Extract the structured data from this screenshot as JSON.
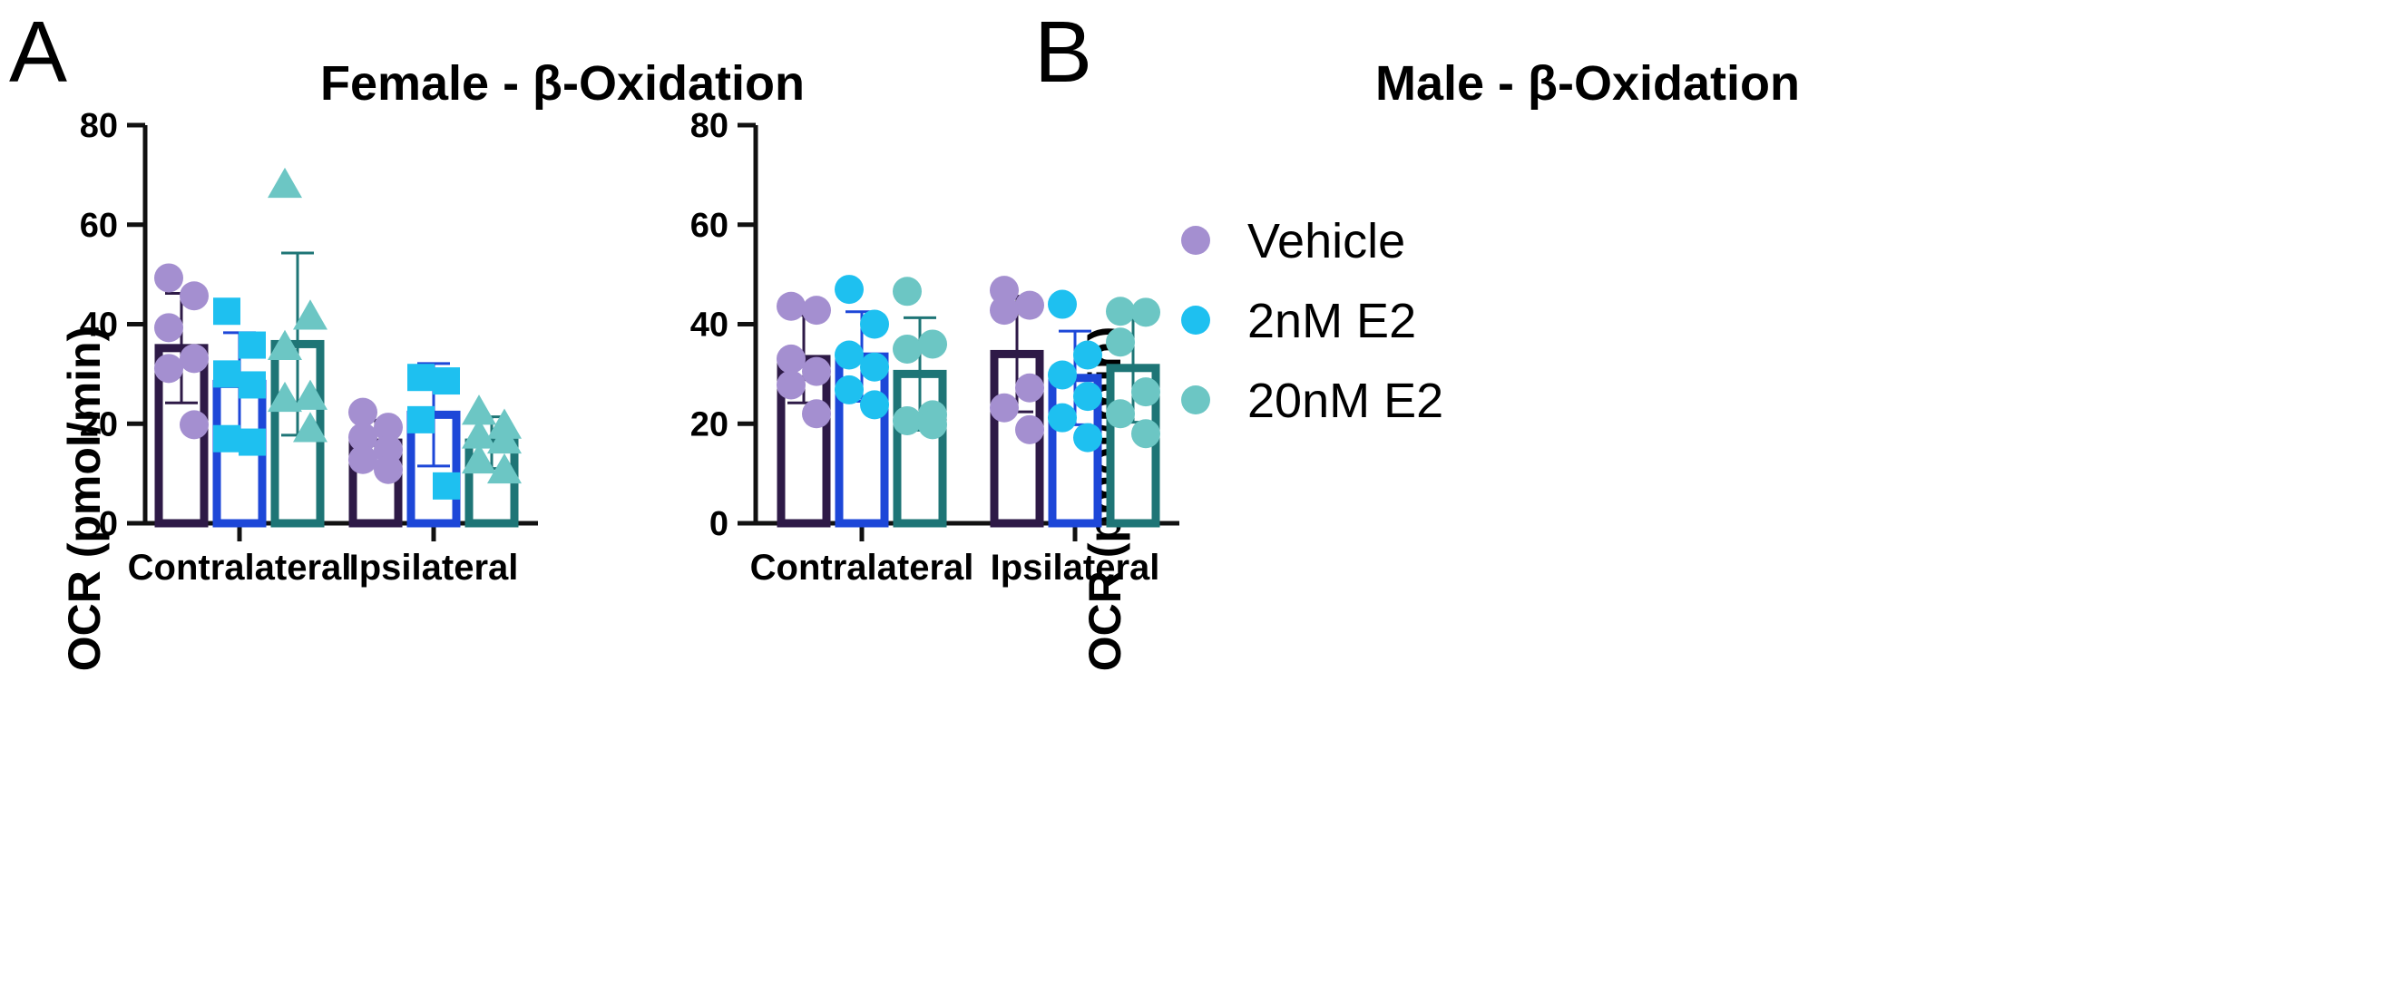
{
  "figure": {
    "panels": [
      "A",
      "B"
    ],
    "legend": [
      {
        "label": "Vehicle",
        "color": "#a48fd0"
      },
      {
        "label": "2nM E2",
        "color": "#1ec0f0"
      },
      {
        "label": "20nM E2",
        "color": "#6cc6c4"
      }
    ]
  },
  "chart_data": [
    {
      "type": "bar",
      "title": "Female - β-Oxidation",
      "ylabel": "OCR (pmol/min)",
      "xlabel": "",
      "ylim": [
        0,
        80
      ],
      "yticks": [
        0,
        20,
        40,
        60,
        80
      ],
      "categories": [
        "Contralateral",
        "Ipsilateral"
      ],
      "grid": false,
      "series": [
        {
          "name": "Vehicle",
          "bar_color": "#2e1a47",
          "point_color": "#a48fd0",
          "marker": "circle",
          "values": [
            35.2,
            16.2
          ],
          "errors": [
            11.0,
            4.5
          ],
          "points": [
            [
              49.3,
              45.7,
              39.3,
              33.1,
              31.1,
              19.8
            ],
            [
              22.3,
              19.3,
              17.3,
              14.8,
              12.8,
              10.8
            ]
          ]
        },
        {
          "name": "2nM E2",
          "bar_color": "#1d47d8",
          "point_color": "#1ec0f0",
          "marker": "square",
          "values": [
            28.0,
            21.8
          ],
          "errors": [
            10.3,
            10.3
          ],
          "points": [
            [
              42.6,
              35.8,
              30.0,
              27.8,
              17.0,
              16.3
            ],
            [
              29.3,
              28.6,
              20.8,
              7.5
            ]
          ]
        },
        {
          "name": "20nM E2",
          "bar_color": "#1e7576",
          "point_color": "#6cc6c4",
          "marker": "triangle",
          "values": [
            36.0,
            16.2
          ],
          "errors": [
            18.3,
            5.2
          ],
          "points": [
            [
              68.0,
              41.5,
              35.4,
              25.4,
              25.0,
              18.9
            ],
            [
              22.4,
              19.6,
              17.6,
              16.6,
              12.6,
              10.6
            ]
          ]
        }
      ]
    },
    {
      "type": "bar",
      "title": "Male - β-Oxidation",
      "ylabel": "OCR (pmol/min)",
      "xlabel": "",
      "ylim": [
        0,
        80
      ],
      "yticks": [
        0,
        20,
        40,
        60,
        80
      ],
      "categories": [
        "Contralateral",
        "Ipsilateral"
      ],
      "grid": false,
      "series": [
        {
          "name": "Vehicle",
          "bar_color": "#2e1a47",
          "point_color": "#a48fd0",
          "marker": "circle",
          "values": [
            33.0,
            34.0
          ],
          "errors": [
            8.8,
            11.6
          ],
          "points": [
            [
              43.6,
              42.8,
              33.0,
              30.5,
              27.8,
              22.0
            ],
            [
              46.8,
              43.8,
              42.8,
              27.2,
              23.2,
              18.8
            ]
          ]
        },
        {
          "name": "2nM E2",
          "bar_color": "#1d47d8",
          "point_color": "#1ec0f0",
          "marker": "circle",
          "values": [
            33.5,
            29.2
          ],
          "errors": [
            9.0,
            9.4
          ],
          "points": [
            [
              47.0,
              40.0,
              33.8,
              31.4,
              26.8,
              23.8
            ],
            [
              44.0,
              33.8,
              29.8,
              25.5,
              21.2,
              17.2
            ]
          ]
        },
        {
          "name": "20nM E2",
          "bar_color": "#1e7576",
          "point_color": "#6cc6c4",
          "marker": "circle",
          "values": [
            30.0,
            31.2
          ],
          "errors": [
            11.3,
            10.9
          ],
          "points": [
            [
              46.6,
              36.0,
              35.0,
              21.8,
              20.6,
              19.8
            ],
            [
              42.6,
              42.4,
              36.4,
              26.4,
              22.0,
              18.0
            ]
          ]
        }
      ]
    }
  ]
}
